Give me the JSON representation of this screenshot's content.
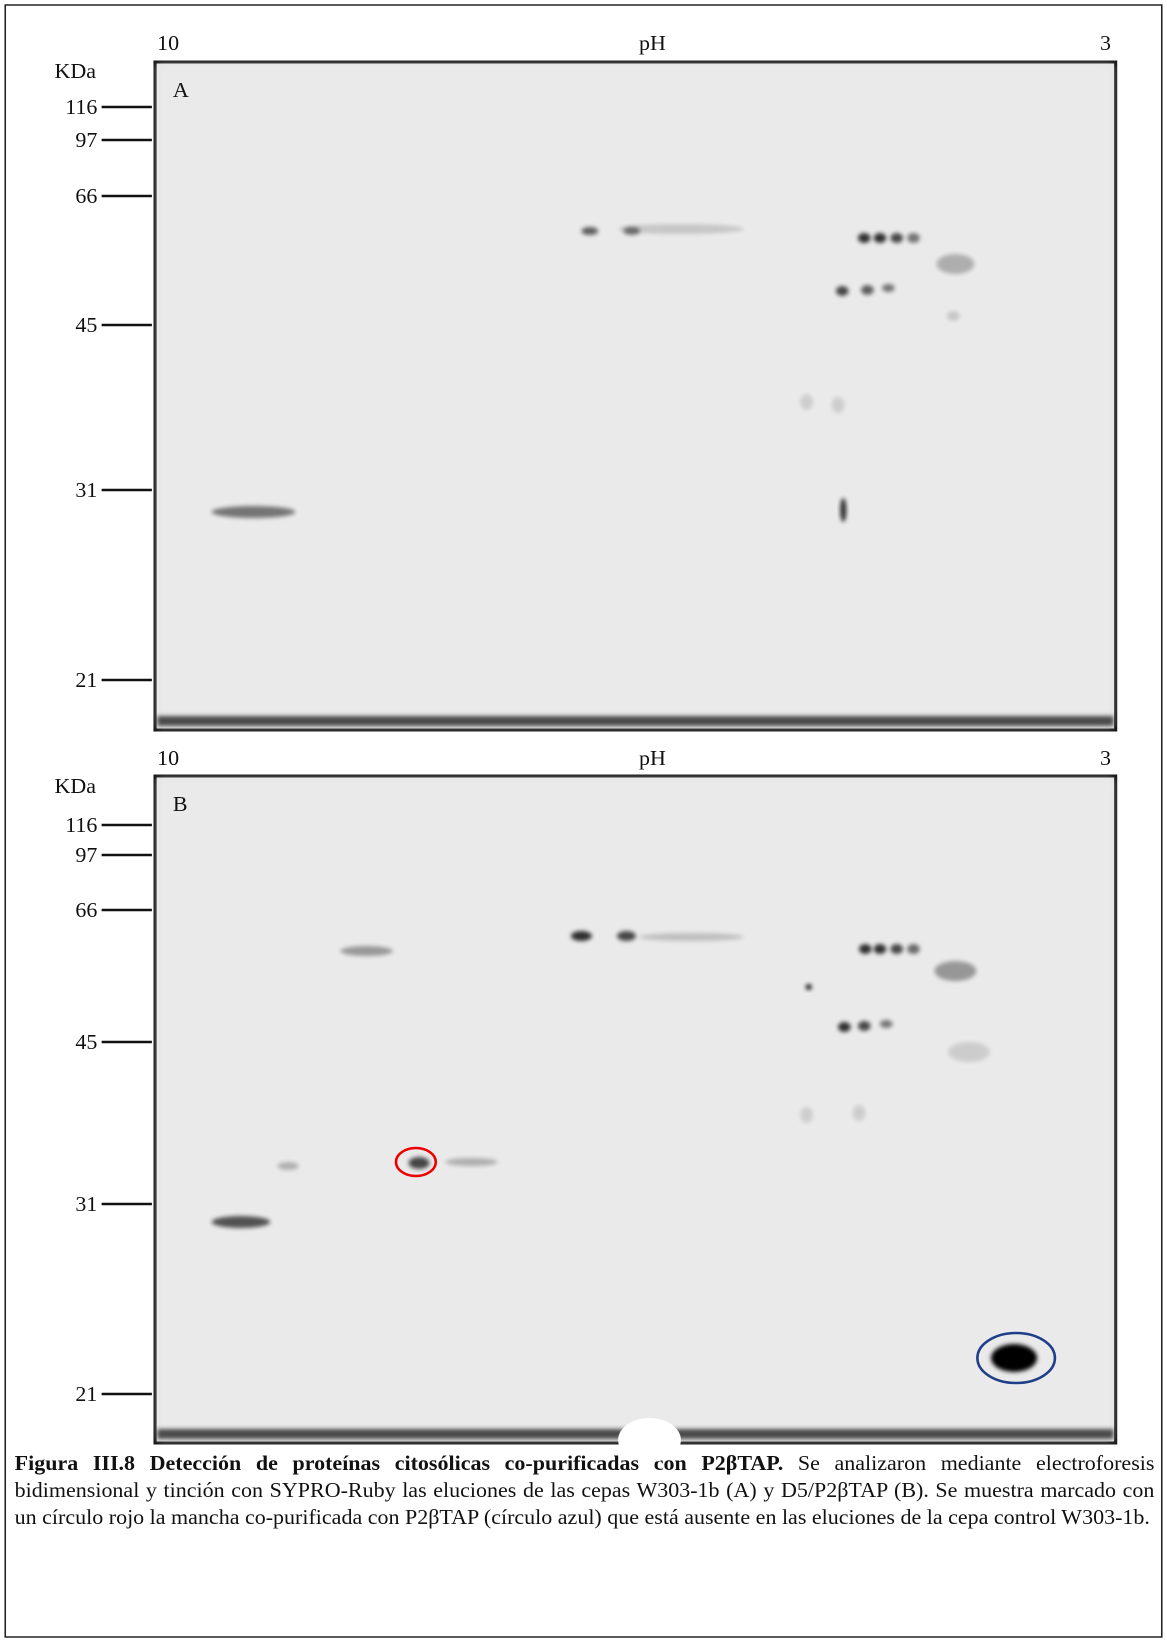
{
  "panels": [
    {
      "letter": "A",
      "ph_left": "10",
      "ph_label": "pH",
      "ph_right": "3",
      "mw_unit": "KDa",
      "markers": [
        "116",
        "97",
        "66",
        "45",
        "31",
        "21"
      ]
    },
    {
      "letter": "B",
      "ph_left": "10",
      "ph_label": "pH",
      "ph_right": "3",
      "mw_unit": "KDa",
      "markers": [
        "116",
        "97",
        "66",
        "45",
        "31",
        "21"
      ]
    }
  ],
  "caption": {
    "title": "Figura III.8  Detección de proteínas citosólicas co-purificadas con P2βTAP.",
    "text": "Se analizaron mediante electroforesis bidimensional y tinción con SYPRO-Ruby las eluciones de las cepas W303-1b (A) y D5/P2βTAP (B).  Se muestra marcado con un círculo rojo la mancha co-purificada con P2βTAP (círculo azul) que está ausente en las eluciones de la cepa control W303-1b."
  }
}
